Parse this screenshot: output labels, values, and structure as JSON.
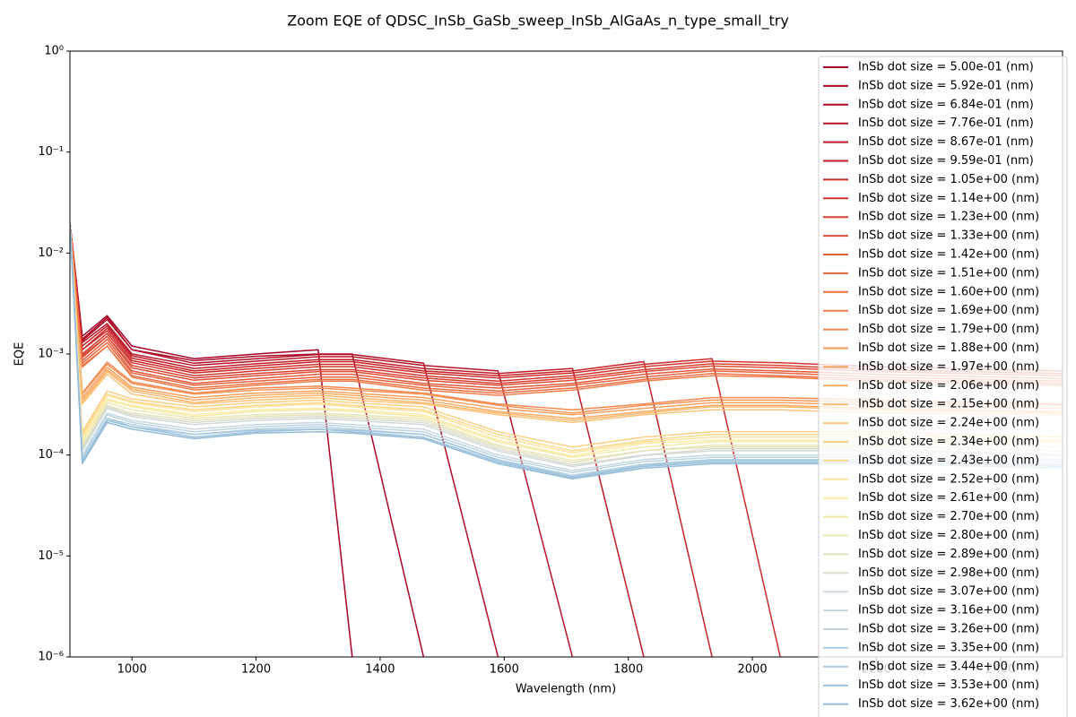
{
  "chart_data": {
    "type": "line",
    "title": "Zoom EQE of QDSC_InSb_GaSb_sweep_InSb_AlGaAs_n_type_small_try",
    "x_label": "Wavelength (nm)",
    "y_label": "EQE",
    "log_y": true,
    "grid": false,
    "legend": "upper right",
    "xlim": [
      900,
      2500
    ],
    "xticks": [
      1000,
      1200,
      1400,
      1600,
      1800,
      2000,
      2200,
      2400
    ],
    "ylim": [
      1e-06,
      1
    ],
    "yticks": [
      {
        "value": 1e-06,
        "label": "10⁻⁶"
      },
      {
        "value": 1e-05,
        "label": "10⁻⁵"
      },
      {
        "value": 0.0001,
        "label": "10⁻⁴"
      },
      {
        "value": 0.001,
        "label": "10⁻³"
      },
      {
        "value": 0.01,
        "label": "10⁻²"
      },
      {
        "value": 0.1,
        "label": "10⁻¹"
      },
      {
        "value": 1,
        "label": "10⁰"
      }
    ],
    "x": [
      900,
      920,
      960,
      1000,
      1100,
      1200,
      1300,
      1355,
      1470,
      1590,
      1710,
      1825,
      1935,
      2045,
      2200,
      2500
    ],
    "series": [
      {
        "name": "InSb dot size = 5.00e-01 (nm)",
        "color": "#a50026",
        "values": [
          0.02,
          0.0015,
          0.0024,
          0.0012,
          0.0009,
          0.001,
          0.0011,
          1e-06,
          null,
          null,
          null,
          null,
          null,
          null,
          null,
          null
        ]
      },
      {
        "name": "InSb dot size = 5.92e-01 (nm)",
        "color": "#ab0626",
        "values": [
          0.02,
          0.0014,
          0.0023,
          0.0011,
          0.00086,
          0.00095,
          0.001,
          0.001,
          1e-06,
          null,
          null,
          null,
          null,
          null,
          null,
          null
        ]
      },
      {
        "name": "InSb dot size = 6.84e-01 (nm)",
        "color": "#b10c26",
        "values": [
          0.02,
          0.00135,
          0.0022,
          0.0011,
          0.00081,
          0.0009,
          0.00099,
          0.00099,
          0.00081,
          1e-06,
          null,
          null,
          null,
          null,
          null,
          null
        ]
      },
      {
        "name": "InSb dot size = 7.76e-01 (nm)",
        "color": "#b81427",
        "values": [
          0.02,
          0.0013,
          0.002,
          0.001,
          0.00077,
          0.00085,
          0.00094,
          0.00094,
          0.00077,
          0.00068,
          1e-06,
          null,
          null,
          null,
          null,
          null
        ]
      },
      {
        "name": "InSb dot size = 8.67e-01 (nm)",
        "color": "#c01a27",
        "values": [
          0.02,
          0.0012,
          0.0019,
          0.00096,
          0.00072,
          0.0008,
          0.00088,
          0.00088,
          0.00072,
          0.00064,
          0.00072,
          1e-06,
          null,
          null,
          null,
          null
        ]
      },
      {
        "name": "InSb dot size = 9.59e-01 (nm)",
        "color": "#c62027",
        "values": [
          0.02,
          0.0011,
          0.0018,
          0.00091,
          0.00068,
          0.00076,
          0.00084,
          0.00084,
          0.00068,
          0.00061,
          0.00068,
          0.00084,
          1e-06,
          null,
          null,
          null
        ]
      },
      {
        "name": "InSb dot size = 1.05e+00 (nm)",
        "color": "#cd2c29",
        "values": [
          0.02,
          0.0011,
          0.0017,
          0.00086,
          0.00065,
          0.00072,
          0.00079,
          0.00079,
          0.00065,
          0.00058,
          0.00065,
          0.00079,
          0.0009,
          1e-06,
          null,
          null
        ]
      },
      {
        "name": "InSb dot size = 1.14e+00 (nm)",
        "color": "#d3362e",
        "values": [
          0.02,
          0.001,
          0.0016,
          0.00082,
          0.00061,
          0.00068,
          0.00075,
          0.00075,
          0.00061,
          0.00054,
          0.00061,
          0.00075,
          0.00085,
          0.00082,
          0.00075,
          0.00068
        ]
      },
      {
        "name": "InSb dot size = 1.23e+00 (nm)",
        "color": "#d94130",
        "values": [
          0.02,
          0.00096,
          0.0015,
          0.00077,
          0.00058,
          0.00064,
          0.0007,
          0.0007,
          0.00058,
          0.00051,
          0.00058,
          0.0007,
          0.0008,
          0.00077,
          0.0007,
          0.00064
        ]
      },
      {
        "name": "InSb dot size = 1.33e+00 (nm)",
        "color": "#df4d34",
        "values": [
          0.02,
          0.00092,
          0.0015,
          0.00073,
          0.00055,
          0.00061,
          0.00067,
          0.00067,
          0.00055,
          0.00049,
          0.00055,
          0.00067,
          0.00076,
          0.00073,
          0.00067,
          0.00061
        ]
      },
      {
        "name": "InSb dot size = 1.42e+00 (nm)",
        "color": "#e45939",
        "values": [
          0.02,
          0.00086,
          0.0014,
          0.00068,
          0.00051,
          0.00057,
          0.00063,
          0.00063,
          0.00051,
          0.00046,
          0.00051,
          0.00063,
          0.00071,
          0.00068,
          0.00063,
          0.00057
        ]
      },
      {
        "name": "InSb dot size = 1.51e+00 (nm)",
        "color": "#e8643f",
        "values": [
          0.02,
          0.00081,
          0.0013,
          0.00065,
          0.00049,
          0.00054,
          0.00059,
          0.00059,
          0.00049,
          0.00043,
          0.00049,
          0.00059,
          0.00068,
          0.00065,
          0.00059,
          0.00054
        ]
      },
      {
        "name": "InSb dot size = 1.60e+00 (nm)",
        "color": "#ec7046",
        "values": [
          0.02,
          0.00077,
          0.0012,
          0.00061,
          0.00046,
          0.00051,
          0.00056,
          0.00056,
          0.00046,
          0.00041,
          0.00046,
          0.00056,
          0.00064,
          0.00061,
          0.00056,
          0.00051
        ]
      },
      {
        "name": "InSb dot size = 1.69e+00 (nm)",
        "color": "#f07c4a",
        "values": [
          0.02,
          0.00074,
          0.0012,
          0.00059,
          0.00044,
          0.00049,
          0.00054,
          0.00054,
          0.00044,
          0.00039,
          0.00044,
          0.00054,
          0.00061,
          0.00059,
          0.00054,
          0.00049
        ]
      },
      {
        "name": "InSb dot size = 1.79e+00 (nm)",
        "color": "#f38951",
        "values": [
          0.02,
          0.00041,
          0.00083,
          0.00053,
          0.00041,
          0.00046,
          0.00048,
          0.00046,
          0.00041,
          0.00032,
          0.00028,
          0.00032,
          0.00037,
          0.00037,
          0.00035,
          0.00032
        ]
      },
      {
        "name": "InSb dot size = 1.88e+00 (nm)",
        "color": "#f59558",
        "values": [
          0.02,
          0.0004,
          0.00079,
          0.00051,
          0.0004,
          0.00044,
          0.00046,
          0.00044,
          0.0004,
          0.00031,
          0.00026,
          0.00031,
          0.00035,
          0.00035,
          0.00033,
          0.00031
        ]
      },
      {
        "name": "InSb dot size = 1.97e+00 (nm)",
        "color": "#f7a15f",
        "values": [
          0.02,
          0.00037,
          0.00074,
          0.00047,
          0.00037,
          0.00041,
          0.00043,
          0.00041,
          0.00037,
          0.00029,
          0.00025,
          0.00029,
          0.00033,
          0.00033,
          0.00031,
          0.00029
        ]
      },
      {
        "name": "InSb dot size = 2.06e+00 (nm)",
        "color": "#f9ad67",
        "values": [
          0.02,
          0.00035,
          0.0007,
          0.00045,
          0.00035,
          0.00039,
          0.00041,
          0.00039,
          0.00035,
          0.00027,
          0.00023,
          0.00027,
          0.00031,
          0.00031,
          0.00029,
          0.00027
        ]
      },
      {
        "name": "InSb dot size = 2.15e+00 (nm)",
        "color": "#fab970",
        "values": [
          0.02,
          0.00033,
          0.00067,
          0.00043,
          0.00033,
          0.00037,
          0.00039,
          0.00037,
          0.00033,
          0.00026,
          0.00022,
          0.00026,
          0.0003,
          0.0003,
          0.00028,
          0.00026
        ]
      },
      {
        "name": "InSb dot size = 2.24e+00 (nm)",
        "color": "#fcc47a",
        "values": [
          0.02,
          0.00032,
          0.00063,
          0.0004,
          0.00032,
          0.00035,
          0.00037,
          0.00035,
          0.00032,
          0.00025,
          0.00021,
          0.00025,
          0.00028,
          0.00028,
          0.00026,
          0.00025
        ]
      },
      {
        "name": "InSb dot size = 2.34e+00 (nm)",
        "color": "#fdcf83",
        "values": [
          0.02,
          0.00017,
          0.00043,
          0.00036,
          0.0003,
          0.00033,
          0.00035,
          0.00033,
          0.0003,
          0.00017,
          0.00012,
          0.00015,
          0.00017,
          0.00017,
          0.00017,
          0.00015
        ]
      },
      {
        "name": "InSb dot size = 2.43e+00 (nm)",
        "color": "#fdd98e",
        "values": [
          0.02,
          0.00016,
          0.0004,
          0.00034,
          0.00028,
          0.00031,
          0.00033,
          0.00031,
          0.00028,
          0.00016,
          0.00011,
          0.00014,
          0.00016,
          0.00016,
          0.00016,
          0.00014
        ]
      },
      {
        "name": "InSb dot size = 2.52e+00 (nm)",
        "color": "#fee29a",
        "values": [
          0.02,
          0.00015,
          0.00039,
          0.00033,
          0.00027,
          0.0003,
          0.00032,
          0.0003,
          0.00027,
          0.00015,
          0.000105,
          0.000135,
          0.00015,
          0.00015,
          0.00015,
          0.000135
        ]
      },
      {
        "name": "InSb dot size = 2.61e+00 (nm)",
        "color": "#feeaa5",
        "values": [
          0.02,
          0.00014,
          0.00036,
          0.00031,
          0.00025,
          0.00028,
          0.00029,
          0.00028,
          0.00025,
          0.00014,
          9.8e-05,
          0.00013,
          0.00014,
          0.00014,
          0.00014,
          0.00013
        ]
      },
      {
        "name": "InSb dot size = 2.70e+00 (nm)",
        "color": "#f2eba8",
        "values": [
          0.02,
          0.000135,
          0.00035,
          0.0003,
          0.00024,
          0.00027,
          0.00028,
          0.00027,
          0.00024,
          0.000135,
          9.5e-05,
          0.00012,
          0.000135,
          0.000135,
          0.000135,
          0.00012
        ]
      },
      {
        "name": "InSb dot size = 2.80e+00 (nm)",
        "color": "#ebe7b4",
        "values": [
          0.02,
          0.000125,
          0.00033,
          0.00028,
          0.00023,
          0.00025,
          0.00026,
          0.00025,
          0.00023,
          0.000125,
          8.8e-05,
          0.00011,
          0.000125,
          0.000125,
          0.000125,
          0.00011
        ]
      },
      {
        "name": "InSb dot size = 2.89e+00 (nm)",
        "color": "#e3e2c0",
        "values": [
          0.02,
          0.00012,
          0.00031,
          0.00026,
          0.00022,
          0.00024,
          0.00025,
          0.00024,
          0.00022,
          0.00012,
          8.4e-05,
          0.00011,
          0.00012,
          0.00012,
          0.00012,
          0.00011
        ]
      },
      {
        "name": "InSb dot size = 2.98e+00 (nm)",
        "color": "#dadccb",
        "values": [
          0.02,
          0.000115,
          0.0003,
          0.00025,
          0.00021,
          0.00023,
          0.00024,
          0.00023,
          0.00021,
          0.000115,
          8e-05,
          0.0001,
          0.000115,
          0.000115,
          0.000115,
          0.0001
        ]
      },
      {
        "name": "InSb dot size = 3.07e+00 (nm)",
        "color": "#d0d9d9",
        "values": [
          0.02,
          0.00011,
          0.00029,
          0.00024,
          0.0002,
          0.00022,
          0.00023,
          0.00022,
          0.0002,
          0.00011,
          7.7e-05,
          9.9e-05,
          0.00011,
          0.00011,
          0.00011,
          9.9e-05
        ]
      },
      {
        "name": "InSb dot size = 3.16e+00 (nm)",
        "color": "#c6d8df",
        "values": [
          0.02,
          0.0001,
          0.00026,
          0.00022,
          0.00018,
          0.0002,
          0.00021,
          0.0002,
          0.00018,
          0.0001,
          7e-05,
          9e-05,
          0.0001,
          0.0001,
          0.0001,
          9e-05
        ]
      },
      {
        "name": "InSb dot size = 3.26e+00 (nm)",
        "color": "#bcd5e3",
        "values": [
          0.02,
          9.5e-05,
          0.00025,
          0.00021,
          0.00017,
          0.00019,
          0.0002,
          0.00019,
          0.00017,
          9.5e-05,
          6.7e-05,
          8.6e-05,
          9.5e-05,
          9.5e-05,
          9.5e-05,
          8.6e-05
        ]
      },
      {
        "name": "InSb dot size = 3.35e+00 (nm)",
        "color": "#b1cfe2",
        "values": [
          0.02,
          9e-05,
          0.00023,
          0.0002,
          0.00016,
          0.00018,
          0.00019,
          0.00018,
          0.00016,
          9e-05,
          6.3e-05,
          8.1e-05,
          9e-05,
          9e-05,
          9e-05,
          8.1e-05
        ]
      },
      {
        "name": "InSb dot size = 3.44e+00 (nm)",
        "color": "#a7c9df",
        "values": [
          0.02,
          8.8e-05,
          0.00023,
          0.00019,
          0.00016,
          0.000175,
          0.00018,
          0.000175,
          0.00016,
          8.8e-05,
          6.1e-05,
          7.9e-05,
          8.8e-05,
          8.8e-05,
          8.8e-05,
          7.9e-05
        ]
      },
      {
        "name": "InSb dot size = 3.53e+00 (nm)",
        "color": "#9dc3dc",
        "values": [
          0.02,
          8.5e-05,
          0.00022,
          0.00019,
          0.00015,
          0.00017,
          0.00018,
          0.00017,
          0.00015,
          8.5e-05,
          6e-05,
          7.7e-05,
          8.5e-05,
          8.5e-05,
          8.5e-05,
          7.7e-05
        ]
      },
      {
        "name": "InSb dot size = 3.62e+00 (nm)",
        "color": "#93bcd8",
        "values": [
          0.02,
          8.2e-05,
          0.00021,
          0.00018,
          0.000145,
          0.000165,
          0.00017,
          0.000165,
          0.000145,
          8.2e-05,
          5.8e-05,
          7.4e-05,
          8.2e-05,
          8.2e-05,
          8.2e-05,
          7.4e-05
        ]
      }
    ]
  }
}
